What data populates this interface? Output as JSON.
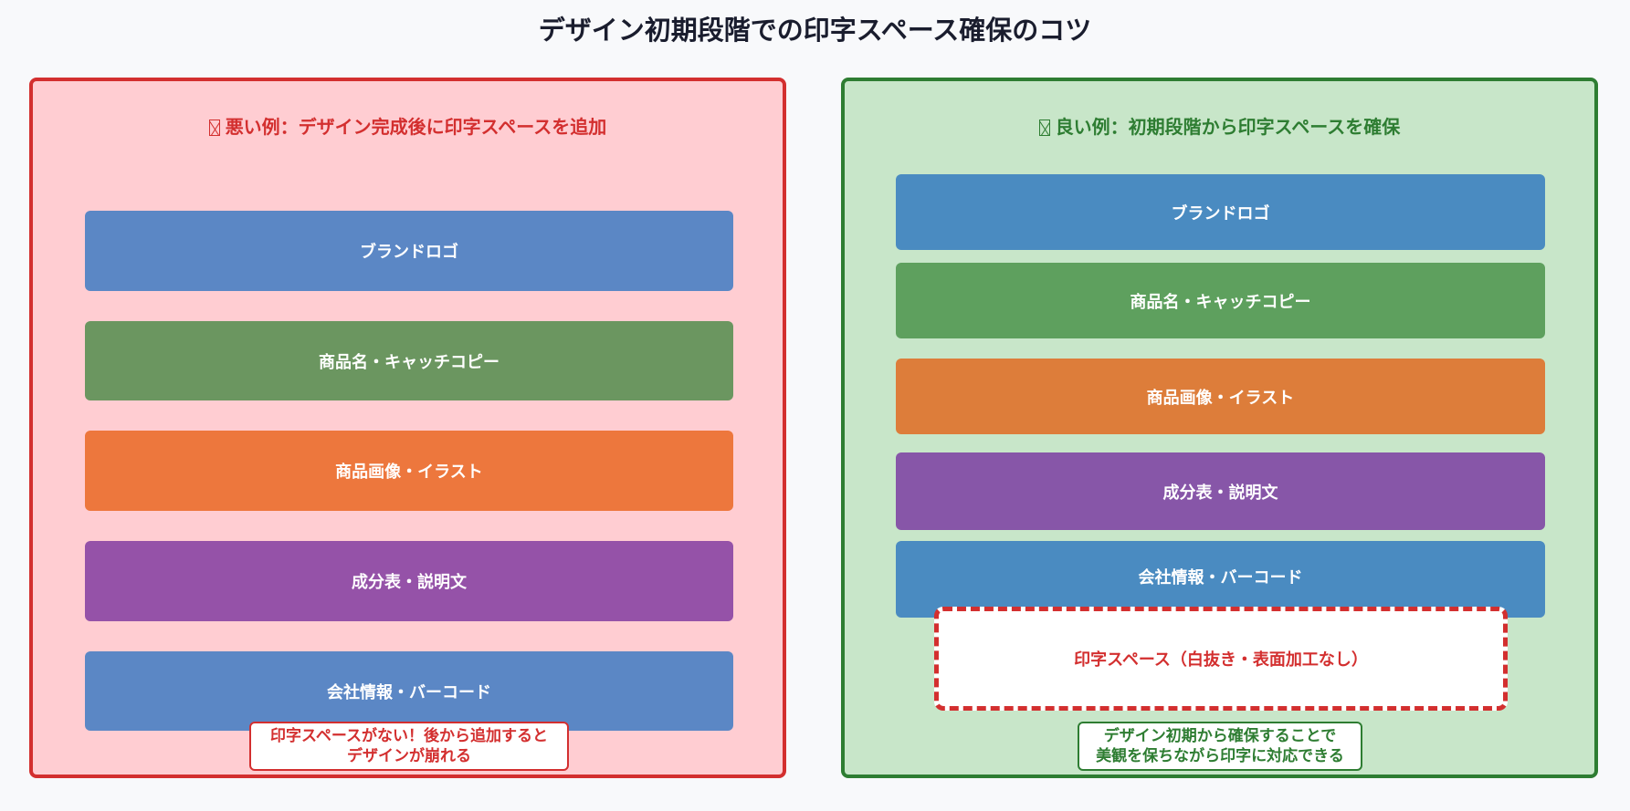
{
  "title": "デザイン初期段階での印字スペース確保のコツ",
  "colors": {
    "bad_border": "#d32f2f",
    "bad_bg": "#ffcdd2",
    "good_border": "#2e7d32",
    "good_bg": "#c8e6c9"
  },
  "bad": {
    "icon": "missing-glyph-icon",
    "heading": "悪い例：デザイン完成後に印字スペースを追加",
    "boxes": [
      {
        "label": "ブランドロゴ",
        "color": "#5b87c5"
      },
      {
        "label": "商品名・キャッチコピー",
        "color": "#6b9660"
      },
      {
        "label": "商品画像・イラスト",
        "color": "#ed773d"
      },
      {
        "label": "成分表・説明文",
        "color": "#9552a8"
      },
      {
        "label": "会社情報・バーコード",
        "color": "#5b87c5"
      }
    ],
    "note": [
      "印字スペースがない！後から追加すると",
      "デザインが崩れる"
    ]
  },
  "good": {
    "icon": "missing-glyph-icon",
    "heading": "良い例：初期段階から印字スペースを確保",
    "boxes": [
      {
        "label": "ブランドロゴ",
        "color": "#4a8bc1"
      },
      {
        "label": "商品名・キャッチコピー",
        "color": "#5ea05e"
      },
      {
        "label": "商品画像・イラスト",
        "color": "#dd7d3a"
      },
      {
        "label": "成分表・説明文",
        "color": "#8756a8"
      },
      {
        "label": "会社情報・バーコード",
        "color": "#4a8bc1"
      }
    ],
    "print_space": "印字スペース（白抜き・表面加工なし）",
    "note": [
      "デザイン初期から確保することで",
      "美観を保ちながら印字に対応できる"
    ]
  }
}
